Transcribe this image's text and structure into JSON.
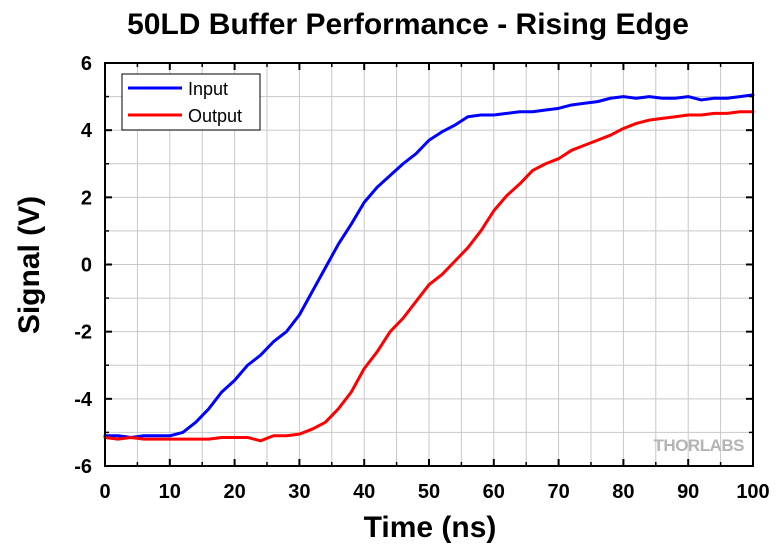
{
  "chart_data": {
    "type": "line",
    "title": "50LD Buffer Performance - Rising Edge",
    "xlabel": "Time (ns)",
    "ylabel": "Signal (V)",
    "xlim": [
      0,
      100
    ],
    "ylim": [
      -6,
      6
    ],
    "x_ticks": [
      0,
      10,
      20,
      30,
      40,
      50,
      60,
      70,
      80,
      90,
      100
    ],
    "y_ticks": [
      -6,
      -4,
      -2,
      0,
      2,
      4,
      6
    ],
    "x_tick_labels": [
      "0",
      "10",
      "20",
      "30",
      "40",
      "50",
      "60",
      "70",
      "80",
      "90",
      "100"
    ],
    "y_tick_labels": [
      "-6",
      "-4",
      "-2",
      "0",
      "2",
      "4",
      "6"
    ],
    "grid": true,
    "legend_position": "top-left",
    "watermark": "THORLABS",
    "series": [
      {
        "name": "Input",
        "color": "#0000ff",
        "x": [
          0,
          2,
          4,
          6,
          8,
          10,
          12,
          14,
          16,
          18,
          20,
          22,
          24,
          26,
          28,
          30,
          32,
          34,
          36,
          38,
          40,
          42,
          44,
          46,
          48,
          50,
          52,
          54,
          56,
          58,
          60,
          62,
          64,
          66,
          68,
          70,
          72,
          74,
          76,
          78,
          80,
          82,
          84,
          86,
          88,
          90,
          92,
          94,
          96,
          98,
          100
        ],
        "y": [
          -5.1,
          -5.1,
          -5.15,
          -5.1,
          -5.1,
          -5.1,
          -5.0,
          -4.7,
          -4.3,
          -3.8,
          -3.45,
          -3.0,
          -2.7,
          -2.3,
          -2.0,
          -1.5,
          -0.8,
          -0.1,
          0.6,
          1.2,
          1.85,
          2.3,
          2.65,
          3.0,
          3.3,
          3.7,
          3.95,
          4.15,
          4.4,
          4.45,
          4.45,
          4.5,
          4.55,
          4.55,
          4.6,
          4.65,
          4.75,
          4.8,
          4.85,
          4.95,
          5.0,
          4.95,
          5.0,
          4.95,
          4.95,
          5.0,
          4.9,
          4.95,
          4.95,
          5.0,
          5.05
        ]
      },
      {
        "name": "Output",
        "color": "#ff0000",
        "x": [
          0,
          2,
          4,
          6,
          8,
          10,
          12,
          14,
          16,
          18,
          20,
          22,
          24,
          26,
          28,
          30,
          32,
          34,
          36,
          38,
          40,
          42,
          44,
          46,
          48,
          50,
          52,
          54,
          56,
          58,
          60,
          62,
          64,
          66,
          68,
          70,
          72,
          74,
          76,
          78,
          80,
          82,
          84,
          86,
          88,
          90,
          92,
          94,
          96,
          98,
          100
        ],
        "y": [
          -5.15,
          -5.2,
          -5.15,
          -5.2,
          -5.2,
          -5.2,
          -5.2,
          -5.2,
          -5.2,
          -5.15,
          -5.15,
          -5.15,
          -5.25,
          -5.1,
          -5.1,
          -5.05,
          -4.9,
          -4.7,
          -4.3,
          -3.8,
          -3.1,
          -2.6,
          -2.0,
          -1.6,
          -1.1,
          -0.6,
          -0.3,
          0.1,
          0.5,
          1.0,
          1.6,
          2.05,
          2.4,
          2.8,
          3.0,
          3.15,
          3.4,
          3.55,
          3.7,
          3.85,
          4.05,
          4.2,
          4.3,
          4.35,
          4.4,
          4.45,
          4.45,
          4.5,
          4.5,
          4.55,
          4.55
        ]
      }
    ]
  }
}
